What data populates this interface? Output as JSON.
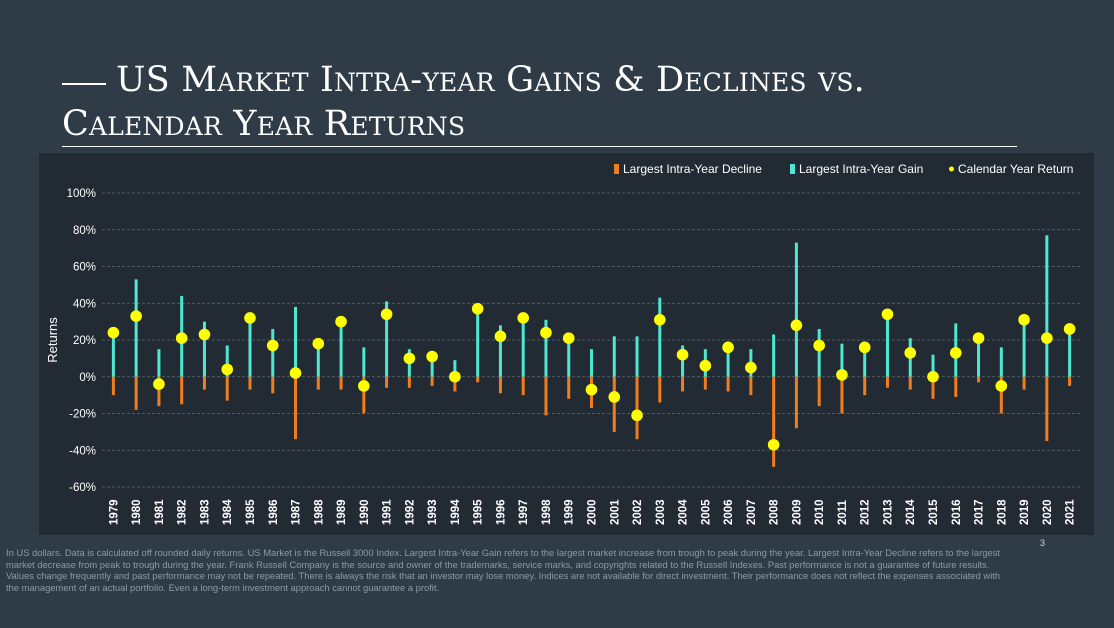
{
  "title": {
    "line1": "US Market Intra-year Gains & Declines vs.",
    "line2": "Calendar Year Returns"
  },
  "colors": {
    "background": "#2f3b46",
    "chart_background": "#222b34",
    "decline": "#f07d1e",
    "gain": "#4de8cf",
    "return": "#ffff00"
  },
  "chart_data": {
    "type": "bar",
    "title": "US Market Intra-year Gains & Declines vs. Calendar Year Returns",
    "ylabel": "Returns",
    "ylim": [
      -60,
      100
    ],
    "yticks": [
      "100%",
      "80%",
      "60%",
      "40%",
      "20%",
      "0%",
      "-20%",
      "-40%",
      "-60%"
    ],
    "grid": true,
    "legend_position": "top-right",
    "legend": [
      "Largest Intra-Year Decline",
      "Largest Intra-Year Gain",
      "Calendar Year Return"
    ],
    "categories": [
      "1979",
      "1980",
      "1981",
      "1982",
      "1983",
      "1984",
      "1985",
      "1986",
      "1987",
      "1988",
      "1989",
      "1990",
      "1991",
      "1992",
      "1993",
      "1994",
      "1995",
      "1996",
      "1997",
      "1998",
      "1999",
      "2000",
      "2001",
      "2002",
      "2003",
      "2004",
      "2005",
      "2006",
      "2007",
      "2008",
      "2009",
      "2010",
      "2011",
      "2012",
      "2013",
      "2014",
      "2015",
      "2016",
      "2017",
      "2018",
      "2019",
      "2020",
      "2021"
    ],
    "series": [
      {
        "name": "Largest Intra-Year Decline",
        "marker": "bar",
        "values": [
          -10,
          -18,
          -16,
          -15,
          -7,
          -13,
          -7,
          -9,
          -34,
          -7,
          -7,
          -20,
          -6,
          -6,
          -5,
          -8,
          -3,
          -9,
          -10,
          -21,
          -12,
          -17,
          -30,
          -34,
          -14,
          -8,
          -7,
          -8,
          -10,
          -49,
          -28,
          -16,
          -20,
          -10,
          -6,
          -7,
          -12,
          -11,
          -3,
          -20,
          -7,
          -35,
          -5
        ]
      },
      {
        "name": "Largest Intra-Year Gain",
        "marker": "bar",
        "values": [
          22,
          53,
          15,
          44,
          30,
          17,
          32,
          26,
          38,
          18,
          33,
          16,
          41,
          15,
          11,
          9,
          38,
          28,
          32,
          31,
          22,
          15,
          22,
          22,
          43,
          17,
          15,
          16,
          15,
          23,
          73,
          26,
          18,
          17,
          34,
          21,
          12,
          29,
          22,
          16,
          30,
          77,
          26
        ]
      },
      {
        "name": "Calendar Year Return",
        "marker": "dot",
        "values": [
          24,
          33,
          -4,
          21,
          23,
          4,
          32,
          17,
          2,
          18,
          30,
          -5,
          34,
          10,
          11,
          0,
          37,
          22,
          32,
          24,
          21,
          -7,
          -11,
          -21,
          31,
          12,
          6,
          16,
          5,
          -37,
          28,
          17,
          1,
          16,
          34,
          13,
          0,
          13,
          21,
          -5,
          31,
          21,
          26
        ]
      }
    ]
  },
  "footnote": "In US dollars. Data is calculated off rounded daily returns. US Market is the Russell 3000 Index. Largest Intra-Year Gain refers to the largest market increase from trough to peak during the year. Largest Intra-Year Decline refers to the largest market decrease from peak to trough during the year. Frank Russell Company is the source and owner of the trademarks, service marks, and copyrights related to the Russell Indexes. Past performance is not a guarantee of future results. Values change frequently and past performance may not be repeated. There is always the risk that an investor may lose money. Indices are not available for direct investment. Their performance does not reflect the expenses associated with the management of an actual portfolio. Even a long-term investment approach cannot guarantee a profit.",
  "page_number": "3"
}
